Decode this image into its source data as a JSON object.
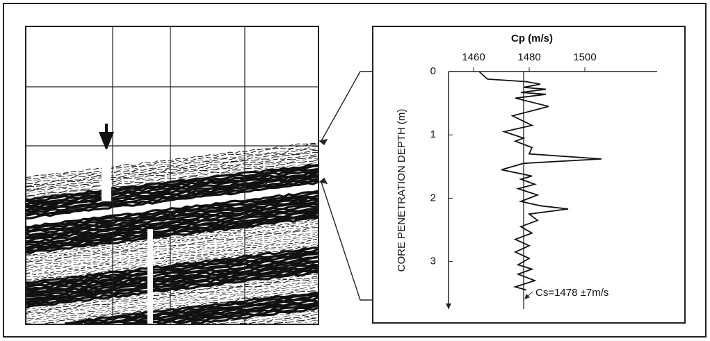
{
  "chart_data": {
    "type": "line",
    "x_label": "Cp (m/s)",
    "y_label": "CORE PENETRATION DEPTH (m)",
    "annotation": "Cs=1478 ±7m/s",
    "reference_line": 1478,
    "image_label": "S",
    "xlim": [
      1451,
      1526
    ],
    "xticks": [
      1460,
      1480,
      1500
    ],
    "ylim": [
      0,
      3.75
    ],
    "yticks": [
      0,
      1,
      2,
      3
    ],
    "y_inverted": true,
    "series": [
      {
        "color": "#111111",
        "x": [
          0,
          0.12,
          0.16,
          0.2,
          0.25,
          0.28,
          0.33,
          0.36,
          0.42,
          0.55,
          0.7,
          0.85,
          0.95,
          1.05,
          1.1,
          1.2,
          1.3,
          1.38,
          1.45,
          1.55,
          1.65,
          1.7,
          1.78,
          1.85,
          1.95,
          2.05,
          2.12,
          2.17,
          2.25,
          2.35,
          2.45,
          2.55,
          2.65,
          2.75,
          2.85,
          2.95,
          3.05,
          3.12,
          3.2,
          3.3,
          3.4,
          3.45
        ],
        "values": [
          1462,
          1465,
          1479,
          1484,
          1478,
          1486,
          1477,
          1486,
          1475,
          1487,
          1474,
          1481,
          1471,
          1478,
          1475,
          1481,
          1480,
          1506,
          1478,
          1470,
          1481,
          1477,
          1482,
          1476,
          1483,
          1477,
          1484,
          1494,
          1480,
          1483,
          1477,
          1481,
          1475,
          1480,
          1475,
          1480,
          1476,
          1481,
          1476,
          1482,
          1475,
          1479
        ]
      }
    ]
  }
}
